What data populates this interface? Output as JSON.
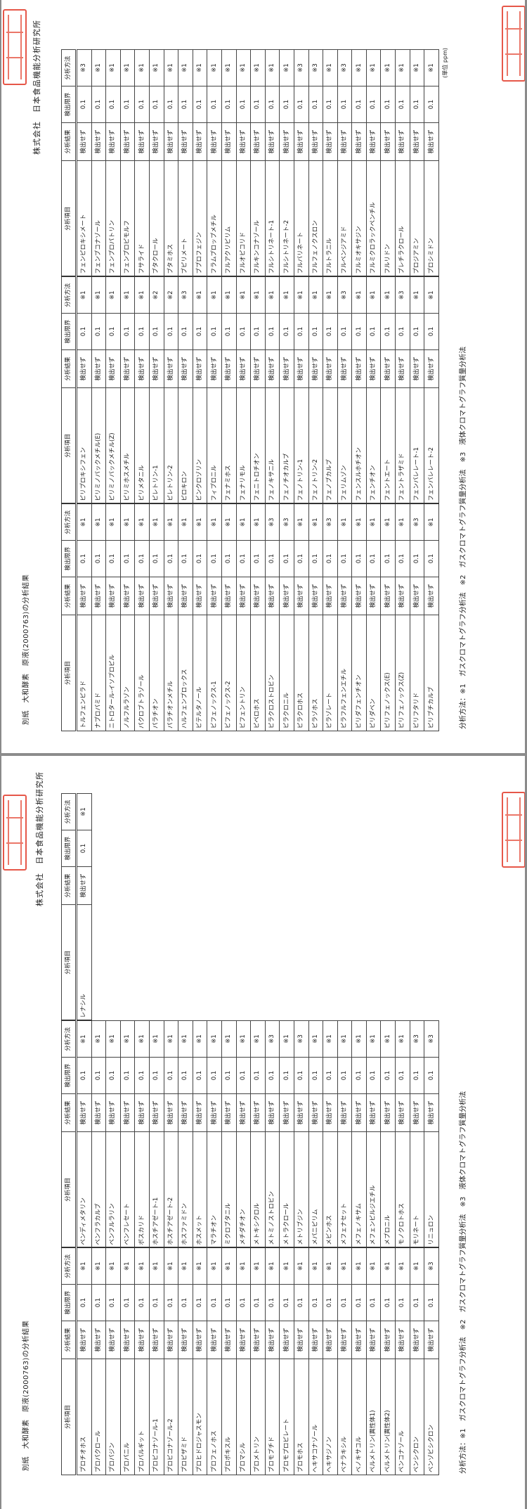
{
  "pages": [
    {
      "title": "別紙　大和酵素　原液(2000763)の分析結果",
      "company": "株式会社　日本食品機能分析研究所",
      "unit": "(単位 ppm)",
      "footer": "分析方法：※1　ガスクロマトグラフ分析法　※2　ガスクロマトグラフ質量分析法　※3　液体クロマトグラフ質量分析法",
      "headers": {
        "item": "分析項目",
        "result": "分析結果",
        "limit": "検出限界",
        "method": "分析方法"
      },
      "groups": [
        [
          [
            "トルフェンピラド",
            "検出せず",
            "0.1",
            "※1"
          ],
          [
            "ナプロパミド",
            "検出せず",
            "0.1",
            "※1"
          ],
          [
            "ニトロタール-イソプロピル",
            "検出せず",
            "0.1",
            "※1"
          ],
          [
            "ノルフルラゾン",
            "検出せず",
            "0.1",
            "※1"
          ],
          [
            "パクロブトラゾール",
            "検出せず",
            "0.1",
            "※1"
          ],
          [
            "パラチオン",
            "検出せず",
            "0.1",
            "※1"
          ],
          [
            "パラチオンメチル",
            "検出せず",
            "0.1",
            "※1"
          ],
          [
            "ハルフェンプロックス",
            "検出せず",
            "0.1",
            "※1"
          ],
          [
            "ビテルタノール",
            "検出せず",
            "0.1",
            "※1"
          ],
          [
            "ビフェノックス-1",
            "検出せず",
            "0.1",
            "※1"
          ],
          [
            "ビフェノックス-2",
            "検出せず",
            "0.1",
            "※1"
          ],
          [
            "ビフェントリン",
            "検出せず",
            "0.1",
            "※1"
          ],
          [
            "ピペロホス",
            "検出せず",
            "0.1",
            "※1"
          ],
          [
            "ピラクロストロビン",
            "検出せず",
            "0.1",
            "※3"
          ],
          [
            "ピラクロニル",
            "検出せず",
            "0.1",
            "※3"
          ],
          [
            "ピラクロホス",
            "検出せず",
            "0.1",
            "※1"
          ],
          [
            "ピラゾホス",
            "検出せず",
            "0.1",
            "※1"
          ],
          [
            "ピラゾレート",
            "検出せず",
            "0.1",
            "※3"
          ],
          [
            "ピラフルフェンエチル",
            "検出せず",
            "0.1",
            "※1"
          ],
          [
            "ピリダフェンチオン",
            "検出せず",
            "0.1",
            "※1"
          ],
          [
            "ピリダベン",
            "検出せず",
            "0.1",
            "※1"
          ],
          [
            "ピリフェノックス(E)",
            "検出せず",
            "0.1",
            "※1"
          ],
          [
            "ピリフェノックス(Z)",
            "検出せず",
            "0.1",
            "※1"
          ],
          [
            "ピリフタリド",
            "検出せず",
            "0.1",
            "※3"
          ],
          [
            "ピリブチカルブ",
            "検出せず",
            "0.1",
            "※1"
          ]
        ],
        [
          [
            "ピリプロキシフェン",
            "検出せず",
            "0.1",
            "※1"
          ],
          [
            "ピリミノバックメチル(E)",
            "検出せず",
            "0.1",
            "※1"
          ],
          [
            "ピリミノバックメチル(Z)",
            "検出せず",
            "0.1",
            "※1"
          ],
          [
            "ピリミホスメチル",
            "検出せず",
            "0.1",
            "※1"
          ],
          [
            "ピリメタニル",
            "検出せず",
            "0.1",
            "※1"
          ],
          [
            "ピレトリン-1",
            "検出せず",
            "0.1",
            "※2"
          ],
          [
            "ピレトリン-2",
            "検出せず",
            "0.1",
            "※2"
          ],
          [
            "ピロキロン",
            "検出せず",
            "0.1",
            "※3"
          ],
          [
            "ビンクロゾリン",
            "検出せず",
            "0.1",
            "※1"
          ],
          [
            "フィプロニル",
            "検出せず",
            "0.1",
            "※1"
          ],
          [
            "フェナミホス",
            "検出せず",
            "0.1",
            "※1"
          ],
          [
            "フェナリモル",
            "検出せず",
            "0.1",
            "※1"
          ],
          [
            "フェニトロチオン",
            "検出せず",
            "0.1",
            "※1"
          ],
          [
            "フェノキサニル",
            "検出せず",
            "0.1",
            "※1"
          ],
          [
            "フェノチオカルブ",
            "検出せず",
            "0.1",
            "※1"
          ],
          [
            "フェノトリン-1",
            "検出せず",
            "0.1",
            "※1"
          ],
          [
            "フェノトリン-2",
            "検出せず",
            "0.1",
            "※1"
          ],
          [
            "フェノブカルブ",
            "検出せず",
            "0.1",
            "※1"
          ],
          [
            "フェリムゾン",
            "検出せず",
            "0.1",
            "※3"
          ],
          [
            "フェンスルホチオン",
            "検出せず",
            "0.1",
            "※1"
          ],
          [
            "フェンチオン",
            "検出せず",
            "0.1",
            "※1"
          ],
          [
            "フェントエート",
            "検出せず",
            "0.1",
            "※1"
          ],
          [
            "フェントラザミド",
            "検出せず",
            "0.1",
            "※3"
          ],
          [
            "フェンバレレート-1",
            "検出せず",
            "0.1",
            "※1"
          ],
          [
            "フェンバレレート-2",
            "検出せず",
            "0.1",
            "※1"
          ]
        ],
        [
          [
            "フェンピロキシメート",
            "検出せず",
            "0.1",
            "※3"
          ],
          [
            "フェンブコナゾール",
            "検出せず",
            "0.1",
            "※1"
          ],
          [
            "フェンプロパトリン",
            "検出せず",
            "0.1",
            "※1"
          ],
          [
            "フェンプロピモルフ",
            "検出せず",
            "0.1",
            "※1"
          ],
          [
            "フサライド",
            "検出せず",
            "0.1",
            "※1"
          ],
          [
            "ブタクロール",
            "検出せず",
            "0.1",
            "※1"
          ],
          [
            "ブタミホス",
            "検出せず",
            "0.1",
            "※1"
          ],
          [
            "ブピリメート",
            "検出せず",
            "0.1",
            "※1"
          ],
          [
            "ブプロフェジン",
            "検出せず",
            "0.1",
            "※1"
          ],
          [
            "フラムプロップメチル",
            "検出せず",
            "0.1",
            "※1"
          ],
          [
            "フルアクリピリム",
            "検出せず",
            "0.1",
            "※1"
          ],
          [
            "フルオピコリド",
            "検出せず",
            "0.1",
            "※1"
          ],
          [
            "フルキンコナゾール",
            "検出せず",
            "0.1",
            "※1"
          ],
          [
            "フルシトリネート-1",
            "検出せず",
            "0.1",
            "※1"
          ],
          [
            "フルシトリネート-2",
            "検出せず",
            "0.1",
            "※1"
          ],
          [
            "フルバリネート",
            "検出せず",
            "0.1",
            "※3"
          ],
          [
            "フルフェノクスロン",
            "検出せず",
            "0.1",
            "※3"
          ],
          [
            "フルトラニル",
            "検出せず",
            "0.1",
            "※1"
          ],
          [
            "フルベンジアミド",
            "検出せず",
            "0.1",
            "※3"
          ],
          [
            "フルミオキサジン",
            "検出せず",
            "0.1",
            "※1"
          ],
          [
            "フルミクロラックペンチル",
            "検出せず",
            "0.1",
            "※1"
          ],
          [
            "フルリドン",
            "検出せず",
            "0.1",
            "※1"
          ],
          [
            "プレチラクロール",
            "検出せず",
            "0.1",
            "※1"
          ],
          [
            "プロジアミン",
            "検出せず",
            "0.1",
            "※1"
          ],
          [
            "プロシミドン",
            "検出せず",
            "0.1",
            "※1"
          ]
        ]
      ]
    },
    {
      "title": "別紙　大和酵素　原液(2000763)の分析結果",
      "company": "株式会社　日本食品機能分析研究所",
      "footer": "分析方法：※1　ガスクロマトグラフ分析法　※2　ガスクロマトグラフ質量分析法　※3　液体クロマトグラフ質量分析法",
      "headers": {
        "item": "分析項目",
        "result": "分析結果",
        "limit": "検出限界",
        "method": "分析方法"
      },
      "groups": [
        [
          [
            "プロチオホス",
            "検出せず",
            "0.1",
            "※1"
          ],
          [
            "プロパクロール",
            "検出せず",
            "0.1",
            "※1"
          ],
          [
            "プロパジン",
            "検出せず",
            "0.1",
            "※1"
          ],
          [
            "プロパニル",
            "検出せず",
            "0.1",
            "※1"
          ],
          [
            "プロパルギット",
            "検出せず",
            "0.1",
            "※1"
          ],
          [
            "プロピコナゾール-1",
            "検出せず",
            "0.1",
            "※1"
          ],
          [
            "プロピコナゾール-2",
            "検出せず",
            "0.1",
            "※1"
          ],
          [
            "プロピザミド",
            "検出せず",
            "0.1",
            "※1"
          ],
          [
            "プロヒドロジャスモン",
            "検出せず",
            "0.1",
            "※1"
          ],
          [
            "プロフェノホス",
            "検出せず",
            "0.1",
            "※1"
          ],
          [
            "プロポキスル",
            "検出せず",
            "0.1",
            "※1"
          ],
          [
            "ブロマシル",
            "検出せず",
            "0.1",
            "※1"
          ],
          [
            "プロメトリン",
            "検出せず",
            "0.1",
            "※1"
          ],
          [
            "ブロモブチド",
            "検出せず",
            "0.1",
            "※1"
          ],
          [
            "ブロモプロピレート",
            "検出せず",
            "0.1",
            "※1"
          ],
          [
            "ブロモホス",
            "検出せず",
            "0.1",
            "※1"
          ],
          [
            "ヘキサコナゾール",
            "検出せず",
            "0.1",
            "※1"
          ],
          [
            "ヘキサジノン",
            "検出せず",
            "0.1",
            "※1"
          ],
          [
            "ベナラキシル",
            "検出せず",
            "0.1",
            "※1"
          ],
          [
            "ベノキサコル",
            "検出せず",
            "0.1",
            "※1"
          ],
          [
            "ペルメトリン(異性体1)",
            "検出せず",
            "0.1",
            "※1"
          ],
          [
            "ペルメトリン(異性体2)",
            "検出せず",
            "0.1",
            "※1"
          ],
          [
            "ペンコナゾール",
            "検出せず",
            "0.1",
            "※1"
          ],
          [
            "ペンシクロン",
            "検出せず",
            "0.1",
            "※1"
          ],
          [
            "ベンゾビシクロン",
            "検出せず",
            "0.1",
            "※3"
          ]
        ],
        [
          [
            "ペンディメタリン",
            "検出せず",
            "0.1",
            "※1"
          ],
          [
            "ベンフラカルブ",
            "検出せず",
            "0.1",
            "※1"
          ],
          [
            "ベンフルラリン",
            "検出せず",
            "0.1",
            "※1"
          ],
          [
            "ベンフレセート",
            "検出せず",
            "0.1",
            "※1"
          ],
          [
            "ボスカリド",
            "検出せず",
            "0.1",
            "※1"
          ],
          [
            "ホスチアゼート-1",
            "検出せず",
            "0.1",
            "※1"
          ],
          [
            "ホスチアゼート-2",
            "検出せず",
            "0.1",
            "※1"
          ],
          [
            "ホスファミドン",
            "検出せず",
            "0.1",
            "※1"
          ],
          [
            "ホスメット",
            "検出せず",
            "0.1",
            "※1"
          ],
          [
            "マラチオン",
            "検出せず",
            "0.1",
            "※1"
          ],
          [
            "ミクロブタニル",
            "検出せず",
            "0.1",
            "※1"
          ],
          [
            "メチダチオン",
            "検出せず",
            "0.1",
            "※1"
          ],
          [
            "メトキシクロル",
            "検出せず",
            "0.1",
            "※1"
          ],
          [
            "メトミノストロビン",
            "検出せず",
            "0.1",
            "※3"
          ],
          [
            "メトラクロール",
            "検出せず",
            "0.1",
            "※1"
          ],
          [
            "メトリブジン",
            "検出せず",
            "0.1",
            "※3"
          ],
          [
            "メパニピリム",
            "検出せず",
            "0.1",
            "※1"
          ],
          [
            "メビンホス",
            "検出せず",
            "0.1",
            "※1"
          ],
          [
            "メフェナセット",
            "検出せず",
            "0.1",
            "※1"
          ],
          [
            "メフェノキサム",
            "検出せず",
            "0.1",
            "※1"
          ],
          [
            "メフェンピルジエチル",
            "検出せず",
            "0.1",
            "※1"
          ],
          [
            "メプロニル",
            "検出せず",
            "0.1",
            "※1"
          ],
          [
            "モノクロトホス",
            "検出せず",
            "0.1",
            "※1"
          ],
          [
            "モリネート",
            "検出せず",
            "0.1",
            "※3"
          ],
          [
            "リニュロン",
            "検出せず",
            "0.1",
            "※3"
          ]
        ],
        [
          [
            "レナシル",
            "検出せず",
            "0.1",
            "※1"
          ]
        ]
      ]
    }
  ]
}
